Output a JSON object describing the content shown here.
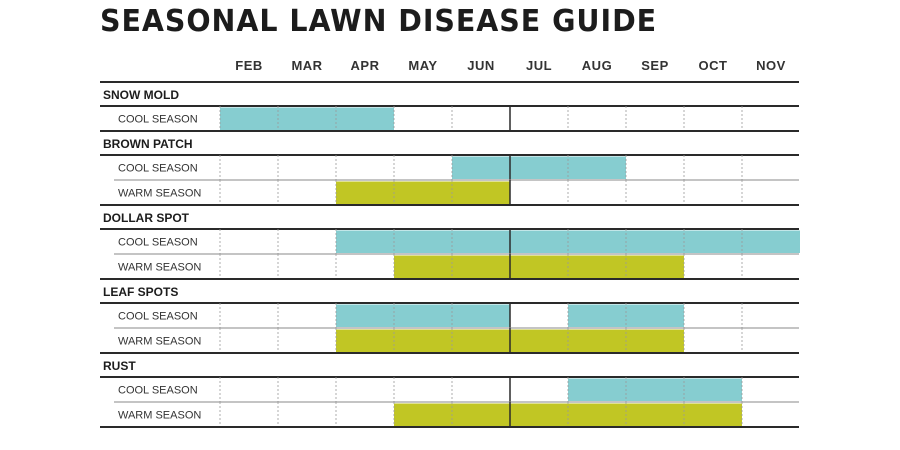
{
  "title": "SEASONAL LAWN DISEASE GUIDE",
  "colors": {
    "cool": "#86CDD0",
    "warm": "#C1C624",
    "rule": "#2a2a2a",
    "grid": "#9a9a9a"
  },
  "chart_data": {
    "type": "table",
    "title": "SEASONAL LAWN DISEASE GUIDE",
    "months": [
      "FEB",
      "MAR",
      "APR",
      "MAY",
      "JUN",
      "JUL",
      "AUG",
      "SEP",
      "OCT",
      "NOV"
    ],
    "diseases": [
      {
        "name": "SNOW MOLD",
        "rows": [
          {
            "label": "COOL SEASON",
            "type": "cool",
            "active": [
              "FEB",
              "MAR",
              "APR"
            ]
          }
        ]
      },
      {
        "name": "BROWN PATCH",
        "rows": [
          {
            "label": "COOL SEASON",
            "type": "cool",
            "active": [
              "JUN",
              "JUL",
              "AUG"
            ]
          },
          {
            "label": "WARM SEASON",
            "type": "warm",
            "active": [
              "APR",
              "MAY",
              "JUN"
            ]
          }
        ]
      },
      {
        "name": "DOLLAR SPOT",
        "rows": [
          {
            "label": "COOL SEASON",
            "type": "cool",
            "active": [
              "APR",
              "MAY",
              "JUN",
              "JUL",
              "AUG",
              "SEP",
              "OCT",
              "NOV"
            ]
          },
          {
            "label": "WARM SEASON",
            "type": "warm",
            "active": [
              "MAY",
              "JUN",
              "JUL",
              "AUG",
              "SEP"
            ]
          }
        ]
      },
      {
        "name": "LEAF SPOTS",
        "rows": [
          {
            "label": "COOL SEASON",
            "type": "cool",
            "active": [
              "APR",
              "MAY",
              "JUN",
              "AUG",
              "SEP"
            ]
          },
          {
            "label": "WARM SEASON",
            "type": "warm",
            "active": [
              "APR",
              "MAY",
              "JUN",
              "JUL",
              "AUG",
              "SEP"
            ]
          }
        ]
      },
      {
        "name": "RUST",
        "rows": [
          {
            "label": "COOL SEASON",
            "type": "cool",
            "active": [
              "AUG",
              "SEP",
              "OCT"
            ]
          },
          {
            "label": "WARM SEASON",
            "type": "warm",
            "active": [
              "MAY",
              "JUN",
              "JUL",
              "AUG",
              "SEP",
              "OCT"
            ]
          }
        ]
      }
    ]
  }
}
